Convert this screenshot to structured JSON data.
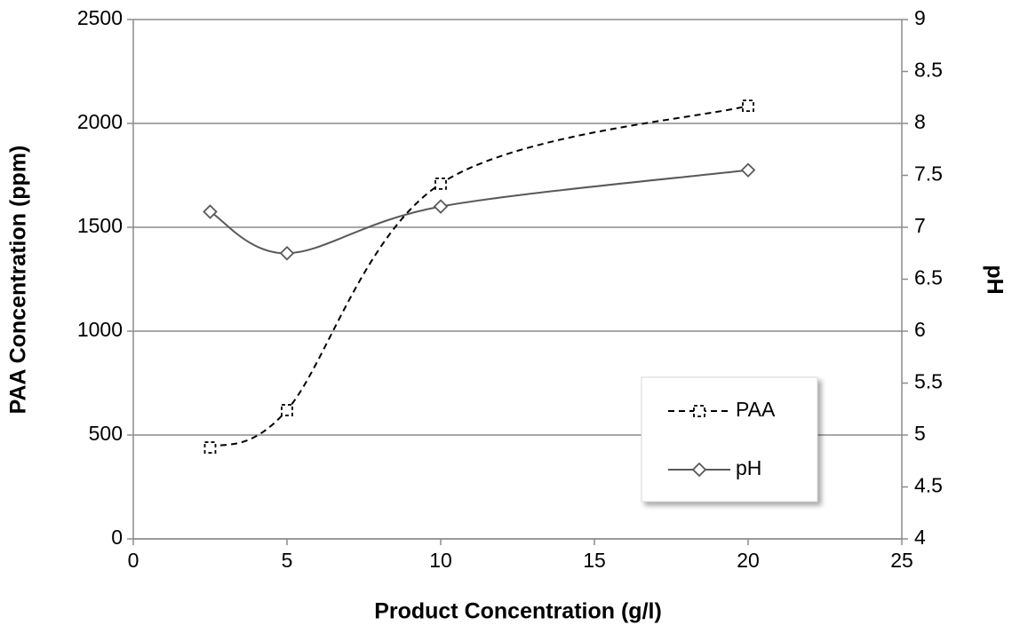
{
  "chart_data": {
    "type": "line",
    "x": [
      2.5,
      5,
      10,
      20
    ],
    "series": [
      {
        "name": "PAA",
        "color": "#000000",
        "dash": true,
        "marker": "square",
        "values": [
          440,
          620,
          1710,
          2085
        ]
      },
      {
        "name": "pH",
        "color": "#595959",
        "dash": false,
        "marker": "diamond",
        "axis": "y2",
        "values": [
          7.15,
          6.75,
          7.2,
          7.55
        ]
      }
    ],
    "xlabel": "Product Concentration (g/l)",
    "ylabel": "PAA Concentration (ppm)",
    "y2label": "pH",
    "xlim": [
      0,
      25
    ],
    "xticks": [
      0,
      5,
      10,
      15,
      20,
      25
    ],
    "ylim": [
      0,
      2500
    ],
    "yticks": [
      0,
      500,
      1000,
      1500,
      2000,
      2500
    ],
    "y2lim": [
      4,
      9
    ],
    "y2ticks": [
      4,
      4.5,
      5,
      5.5,
      6,
      6.5,
      7,
      7.5,
      8,
      8.5,
      9
    ],
    "grid": true,
    "smooth": true,
    "legend": "lower right"
  }
}
